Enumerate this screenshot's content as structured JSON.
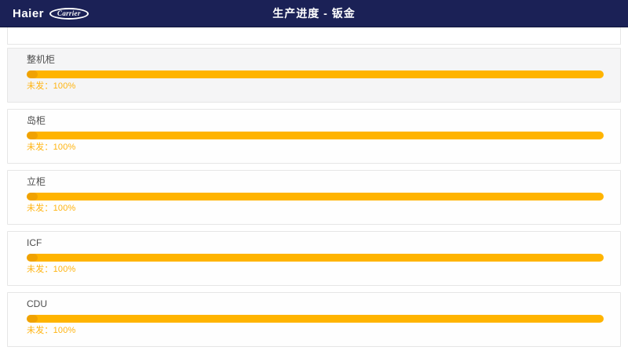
{
  "header": {
    "brand": "Haier",
    "partner_logo": "Carrier",
    "title": "生产进度 - 钣金",
    "bg_color": "#1b2156"
  },
  "colors": {
    "bar": "#ffb400",
    "bar_cap": "#f0a201",
    "status_text": "#ffb411",
    "selected_panel_bg": "#f5f5f6"
  },
  "panels": [
    {
      "label": "整机柜",
      "status_label": "未发：",
      "value": "100%",
      "percent": 100,
      "selected": true
    },
    {
      "label": "岛柜",
      "status_label": "未发：",
      "value": "100%",
      "percent": 100,
      "selected": false
    },
    {
      "label": "立柜",
      "status_label": "未发：",
      "value": "100%",
      "percent": 100,
      "selected": false
    },
    {
      "label": "ICF",
      "status_label": "未发：",
      "value": "100%",
      "percent": 100,
      "selected": false
    },
    {
      "label": "CDU",
      "status_label": "未发：",
      "value": "100%",
      "percent": 100,
      "selected": false
    }
  ]
}
